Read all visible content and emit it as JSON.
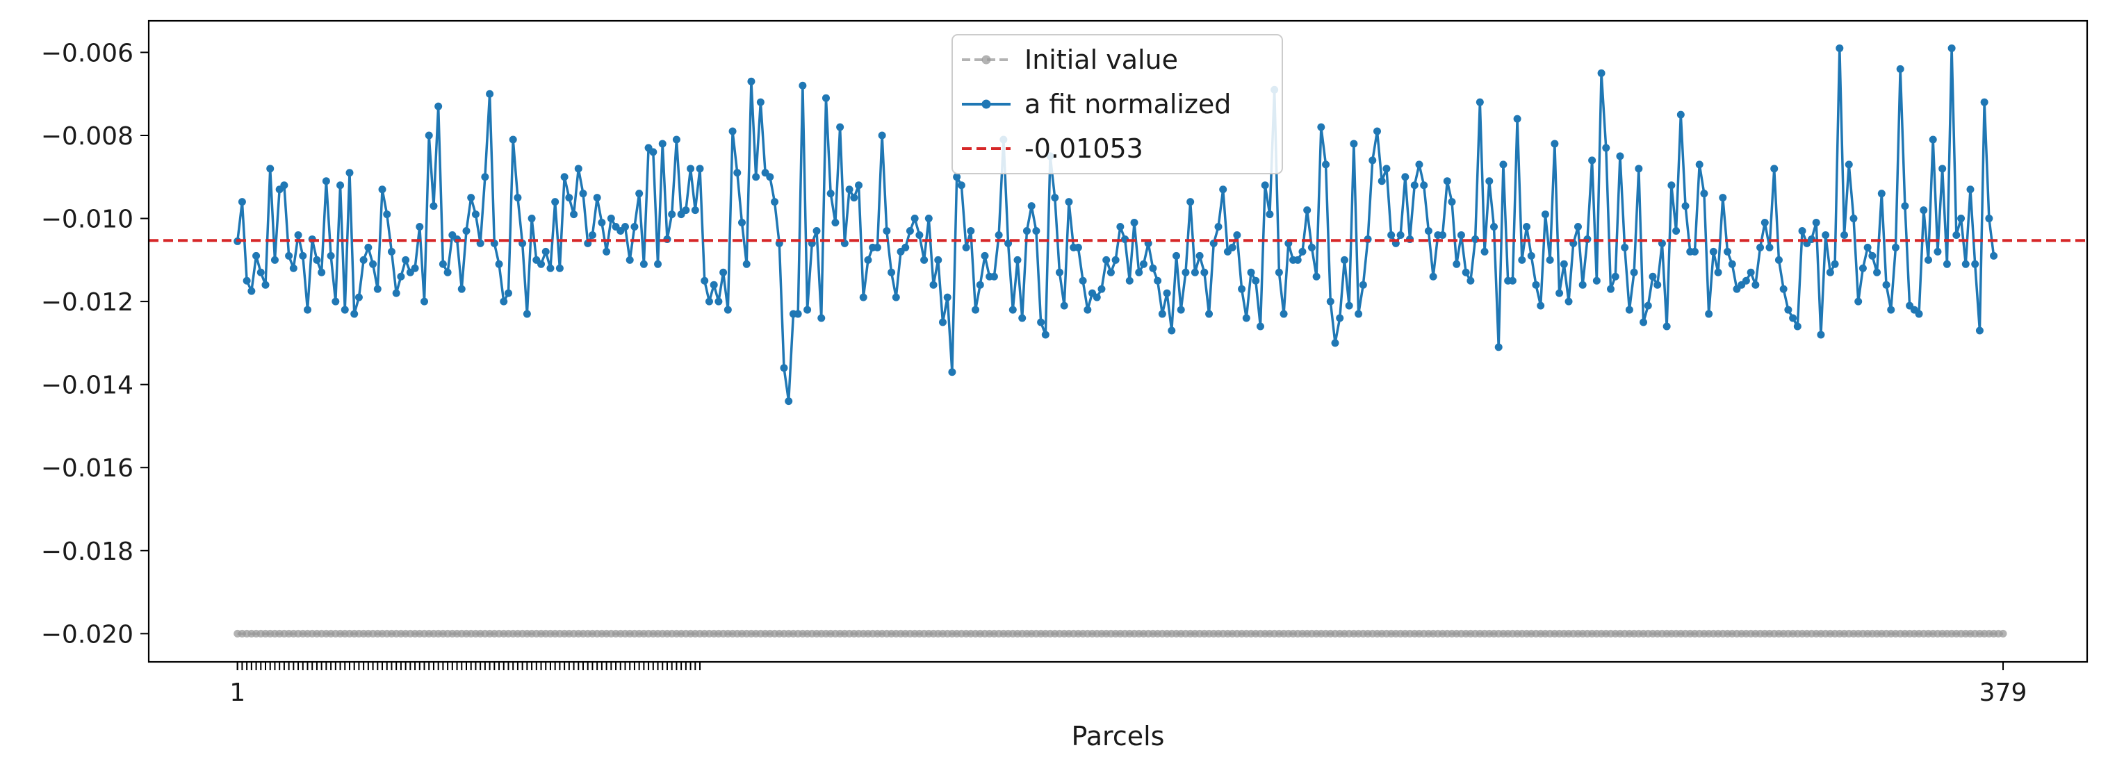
{
  "chart_data": {
    "type": "line",
    "title": "",
    "xlabel": "Parcels",
    "ylabel": "",
    "xlim": [
      -18,
      397
    ],
    "ylim": [
      -0.02068,
      -0.00524
    ],
    "y_ticks": [
      -0.02,
      -0.018,
      -0.016,
      -0.014,
      -0.012,
      -0.01,
      -0.008,
      -0.006
    ],
    "y_tick_labels": [
      "−0.020",
      "−0.018",
      "−0.016",
      "−0.014",
      "−0.012",
      "−0.010",
      "−0.008",
      "−0.006"
    ],
    "x_first": 1,
    "x_count": 379,
    "x_labeled_ticks": [
      {
        "x": 1,
        "label": "1"
      },
      {
        "x": 379,
        "label": "379"
      }
    ],
    "minor_tick_range": [
      1,
      100
    ],
    "legend_position": "upper center",
    "series": [
      {
        "name": "Initial value",
        "color": "#9a9a9a",
        "style": "dashed-with-markers",
        "constant": -0.02
      },
      {
        "name": "a fit normalized",
        "color": "#1f77b4",
        "style": "solid-with-markers",
        "values": [
          -0.01055,
          -0.0096,
          -0.0115,
          -0.01175,
          -0.0109,
          -0.0113,
          -0.0116,
          -0.0088,
          -0.011,
          -0.0093,
          -0.0092,
          -0.0109,
          -0.0112,
          -0.0104,
          -0.0109,
          -0.0122,
          -0.0105,
          -0.011,
          -0.0113,
          -0.0091,
          -0.0109,
          -0.012,
          -0.0092,
          -0.0122,
          -0.0089,
          -0.0123,
          -0.0119,
          -0.011,
          -0.0107,
          -0.0111,
          -0.0117,
          -0.0093,
          -0.0099,
          -0.0108,
          -0.0118,
          -0.0114,
          -0.011,
          -0.0113,
          -0.0112,
          -0.0102,
          -0.012,
          -0.008,
          -0.0097,
          -0.0073,
          -0.0111,
          -0.0113,
          -0.0104,
          -0.0105,
          -0.0117,
          -0.0103,
          -0.0095,
          -0.0099,
          -0.0106,
          -0.009,
          -0.007,
          -0.0106,
          -0.0111,
          -0.012,
          -0.0118,
          -0.0081,
          -0.0095,
          -0.0106,
          -0.0123,
          -0.01,
          -0.011,
          -0.0111,
          -0.0108,
          -0.0112,
          -0.0096,
          -0.0112,
          -0.009,
          -0.0095,
          -0.0099,
          -0.0088,
          -0.0094,
          -0.0106,
          -0.0104,
          -0.0095,
          -0.0101,
          -0.0108,
          -0.01,
          -0.0102,
          -0.0103,
          -0.0102,
          -0.011,
          -0.0102,
          -0.0094,
          -0.0111,
          -0.0083,
          -0.0084,
          -0.0111,
          -0.0082,
          -0.0105,
          -0.0099,
          -0.0081,
          -0.0099,
          -0.0098,
          -0.0088,
          -0.0098,
          -0.0088,
          -0.0115,
          -0.012,
          -0.0116,
          -0.012,
          -0.0113,
          -0.0122,
          -0.0079,
          -0.0089,
          -0.0101,
          -0.0111,
          -0.0067,
          -0.009,
          -0.0072,
          -0.0089,
          -0.009,
          -0.0096,
          -0.0106,
          -0.0136,
          -0.0144,
          -0.0123,
          -0.0123,
          -0.0068,
          -0.0122,
          -0.0106,
          -0.0103,
          -0.0124,
          -0.0071,
          -0.0094,
          -0.0101,
          -0.0078,
          -0.0106,
          -0.0093,
          -0.0095,
          -0.0092,
          -0.0119,
          -0.011,
          -0.0107,
          -0.0107,
          -0.008,
          -0.0103,
          -0.0113,
          -0.0119,
          -0.0108,
          -0.0107,
          -0.0103,
          -0.01,
          -0.0104,
          -0.011,
          -0.01,
          -0.0116,
          -0.011,
          -0.0125,
          -0.0119,
          -0.0137,
          -0.009,
          -0.0092,
          -0.0107,
          -0.0103,
          -0.0122,
          -0.0116,
          -0.0109,
          -0.0114,
          -0.0114,
          -0.0104,
          -0.0081,
          -0.0106,
          -0.0122,
          -0.011,
          -0.0124,
          -0.0103,
          -0.0097,
          -0.0103,
          -0.0125,
          -0.0128,
          -0.0085,
          -0.0095,
          -0.0113,
          -0.0121,
          -0.0096,
          -0.0107,
          -0.0107,
          -0.0115,
          -0.0122,
          -0.0118,
          -0.0119,
          -0.0117,
          -0.011,
          -0.0113,
          -0.011,
          -0.0102,
          -0.0105,
          -0.0115,
          -0.0101,
          -0.0113,
          -0.0111,
          -0.0106,
          -0.0112,
          -0.0115,
          -0.0123,
          -0.0118,
          -0.0127,
          -0.0109,
          -0.0122,
          -0.0113,
          -0.0096,
          -0.0113,
          -0.0109,
          -0.0113,
          -0.0123,
          -0.0106,
          -0.0102,
          -0.0093,
          -0.0108,
          -0.0107,
          -0.0104,
          -0.0117,
          -0.0124,
          -0.0113,
          -0.0115,
          -0.0126,
          -0.0092,
          -0.0099,
          -0.0069,
          -0.0113,
          -0.0123,
          -0.0106,
          -0.011,
          -0.011,
          -0.0108,
          -0.0098,
          -0.0107,
          -0.0114,
          -0.0078,
          -0.0087,
          -0.012,
          -0.013,
          -0.0124,
          -0.011,
          -0.0121,
          -0.0082,
          -0.0123,
          -0.0116,
          -0.0105,
          -0.0086,
          -0.0079,
          -0.0091,
          -0.0088,
          -0.0104,
          -0.0106,
          -0.0104,
          -0.009,
          -0.0105,
          -0.0092,
          -0.0087,
          -0.0092,
          -0.0103,
          -0.0114,
          -0.0104,
          -0.0104,
          -0.0091,
          -0.0096,
          -0.0111,
          -0.0104,
          -0.0113,
          -0.0115,
          -0.0105,
          -0.0072,
          -0.0108,
          -0.0091,
          -0.0102,
          -0.0131,
          -0.0087,
          -0.0115,
          -0.0115,
          -0.0076,
          -0.011,
          -0.0102,
          -0.0109,
          -0.0116,
          -0.0121,
          -0.0099,
          -0.011,
          -0.0082,
          -0.0118,
          -0.0111,
          -0.012,
          -0.0106,
          -0.0102,
          -0.0116,
          -0.0105,
          -0.0086,
          -0.0115,
          -0.0065,
          -0.0083,
          -0.0117,
          -0.0114,
          -0.0085,
          -0.0107,
          -0.0122,
          -0.0113,
          -0.0088,
          -0.0125,
          -0.0121,
          -0.0114,
          -0.0116,
          -0.0106,
          -0.0126,
          -0.0092,
          -0.0103,
          -0.0075,
          -0.0097,
          -0.0108,
          -0.0108,
          -0.0087,
          -0.0094,
          -0.0123,
          -0.0108,
          -0.0113,
          -0.0095,
          -0.0108,
          -0.0111,
          -0.0117,
          -0.0116,
          -0.0115,
          -0.0113,
          -0.0116,
          -0.0107,
          -0.0101,
          -0.0107,
          -0.0088,
          -0.011,
          -0.0117,
          -0.0122,
          -0.0124,
          -0.0126,
          -0.0103,
          -0.0106,
          -0.0105,
          -0.0101,
          -0.0128,
          -0.0104,
          -0.0113,
          -0.0111,
          -0.0059,
          -0.0104,
          -0.0087,
          -0.01,
          -0.012,
          -0.0112,
          -0.0107,
          -0.0109,
          -0.0113,
          -0.0094,
          -0.0116,
          -0.0122,
          -0.0107,
          -0.0064,
          -0.0097,
          -0.0121,
          -0.0122,
          -0.0123,
          -0.0098,
          -0.011,
          -0.0081,
          -0.0108,
          -0.0088,
          -0.0111,
          -0.0059,
          -0.0104,
          -0.01,
          -0.0111,
          -0.0093,
          -0.0111,
          -0.0127,
          -0.0072,
          -0.01,
          -0.0109
        ]
      },
      {
        "name": "-0.01053",
        "color": "#d62728",
        "style": "dashed",
        "constant": -0.01053
      }
    ]
  }
}
